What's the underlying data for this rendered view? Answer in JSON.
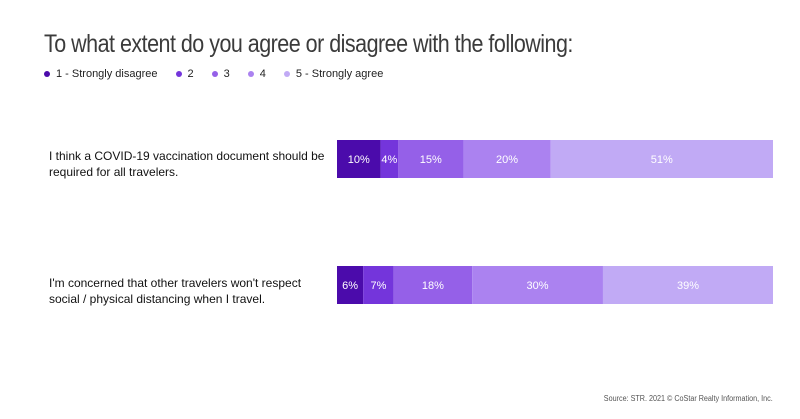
{
  "chart_data": {
    "type": "bar",
    "orientation": "horizontal-stacked-100",
    "title": "To what extent do you agree or disagree with the following:",
    "legend_position": "top-left",
    "series": [
      {
        "name": "1 - Strongly disagree",
        "color": "#4b0bab"
      },
      {
        "name": "2",
        "color": "#7435db"
      },
      {
        "name": "3",
        "color": "#9560e8"
      },
      {
        "name": "4",
        "color": "#ab82f0"
      },
      {
        "name": "5 - Strongly agree",
        "color": "#c1aaf5"
      }
    ],
    "categories": [
      "I think a COVID-19 vaccination document should be required for all travelers.",
      "I'm concerned that other travelers won't respect social / physical distancing when I travel."
    ],
    "values": [
      [
        10,
        4,
        15,
        20,
        51
      ],
      [
        6,
        7,
        18,
        30,
        39
      ]
    ],
    "value_labels": [
      [
        "10%",
        "4%",
        "15%",
        "20%",
        "51%"
      ],
      [
        "6%",
        "7%",
        "18%",
        "30%",
        "39%"
      ]
    ]
  },
  "source": "Source: STR. 2021 © CoStar Realty Information, Inc."
}
